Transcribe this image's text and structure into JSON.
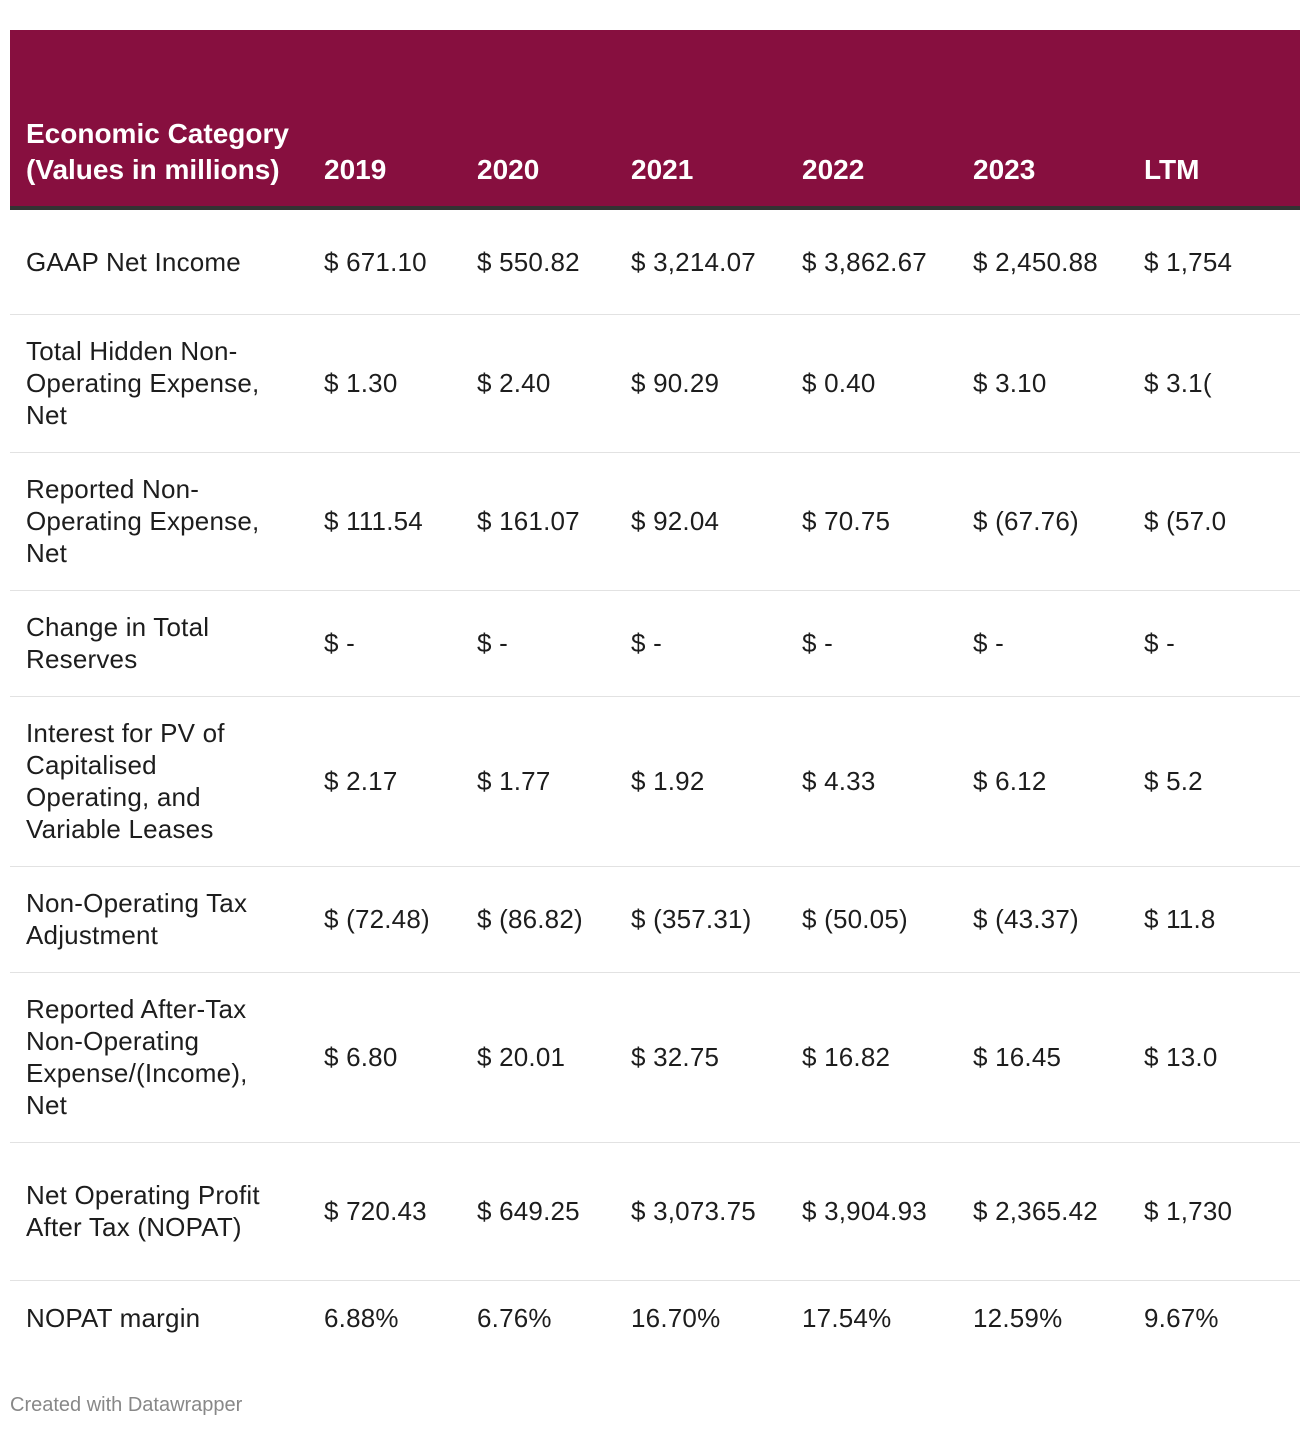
{
  "chart_data": {
    "type": "table",
    "columns": [
      "Economic Category (Values in millions)",
      "2019",
      "2020",
      "2021",
      "2022",
      "2023",
      "LTM"
    ],
    "rows": [
      {
        "label": "GAAP Net Income",
        "values": [
          "$ 671.10",
          "$ 550.82",
          "$ 3,214.07",
          "$ 3,862.67",
          "$ 2,450.88",
          "$ 1,754"
        ]
      },
      {
        "label": "Total Hidden Non-Operating Expense, Net",
        "values": [
          "$ 1.30",
          "$ 2.40",
          "$ 90.29",
          "$ 0.40",
          "$ 3.10",
          "$ 3.1("
        ]
      },
      {
        "label": "Reported Non-Operating Expense, Net",
        "values": [
          "$ 111.54",
          "$ 161.07",
          "$ 92.04",
          "$ 70.75",
          "$ (67.76)",
          "$ (57.0"
        ]
      },
      {
        "label": "Change in Total Reserves",
        "values": [
          "$ -",
          "$ -",
          "$ -",
          "$ -",
          "$ -",
          "$ -"
        ]
      },
      {
        "label": "Interest for PV of Capitalised Operating, and Variable Leases",
        "values": [
          "$ 2.17",
          "$ 1.77",
          "$ 1.92",
          "$ 4.33",
          "$ 6.12",
          "$ 5.2"
        ]
      },
      {
        "label": "Non-Operating Tax Adjustment",
        "values": [
          "$ (72.48)",
          "$ (86.82)",
          "$ (357.31)",
          "$ (50.05)",
          "$ (43.37)",
          "$ 11.8"
        ]
      },
      {
        "label": "Reported After-Tax Non-Operating Expense/(Income), Net",
        "values": [
          "$ 6.80",
          "$ 20.01",
          "$ 32.75",
          "$ 16.82",
          "$ 16.45",
          "$ 13.0"
        ]
      },
      {
        "label": "Net Operating Profit After Tax (NOPAT)",
        "values": [
          "$ 720.43",
          "$ 649.25",
          "$ 3,073.75",
          "$ 3,904.93",
          "$ 2,365.42",
          "$ 1,730"
        ]
      },
      {
        "label": "NOPAT margin",
        "values": [
          "6.88%",
          "6.76%",
          "16.70%",
          "17.54%",
          "12.59%",
          "9.67%"
        ]
      }
    ]
  },
  "footer": "Created with Datawrapper",
  "colors": {
    "header_background": "#870f3f",
    "header_text": "#ffffff",
    "header_rule": "#333333",
    "row_divider": "#e2e2e2",
    "body_text": "#1d1d1d",
    "footer_text": "#888888"
  }
}
